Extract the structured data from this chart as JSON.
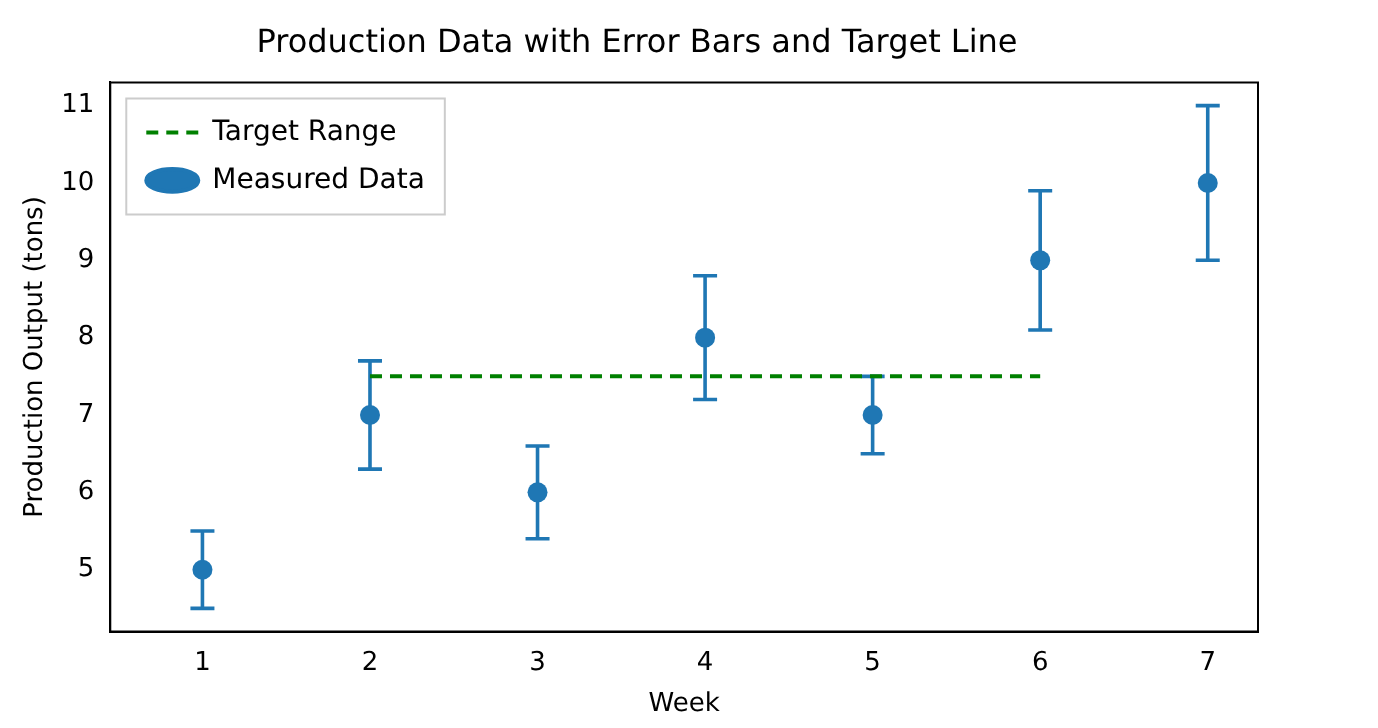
{
  "chart_data": {
    "type": "scatter",
    "title": "Production Data with Error Bars and Target Line",
    "xlabel": "Week",
    "ylabel": "Production Output (tons)",
    "series": [
      {
        "name": "Target Range",
        "type": "line",
        "color": "#008000",
        "x": [
          2,
          6
        ],
        "values": [
          7.5,
          7.5
        ],
        "line_style": "dashed",
        "marker": "none"
      },
      {
        "name": "Measured Data",
        "color": "#1f77b4",
        "x": [
          1,
          2,
          3,
          4,
          5,
          6,
          7
        ],
        "values": [
          5,
          7,
          6,
          8,
          7,
          9,
          10
        ],
        "errors": [
          0.5,
          0.7,
          0.6,
          0.8,
          0.5,
          0.9,
          1
        ]
      }
    ],
    "marker": "circle",
    "xlim": [
      0.45,
      7.3
    ],
    "xticks": [
      1,
      2,
      3,
      4,
      5,
      6,
      7
    ],
    "ylim": [
      4.2,
      11.3
    ],
    "yticks": [
      5,
      6,
      7,
      8,
      9,
      10,
      11
    ],
    "grid": false,
    "legend": "top left"
  }
}
